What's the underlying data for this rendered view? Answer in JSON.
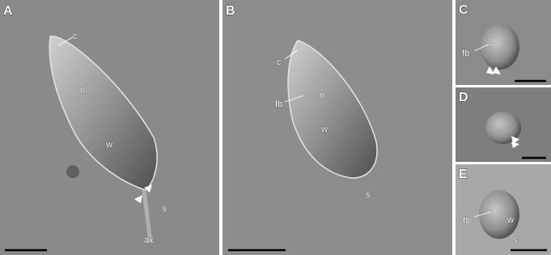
{
  "panels": [
    {
      "letter": "A",
      "labels": [
        "c",
        "n",
        "w",
        "s",
        "ax"
      ]
    },
    {
      "letter": "B",
      "labels": [
        "c",
        "fb",
        "n",
        "w",
        "s"
      ]
    },
    {
      "letter": "C",
      "labels": [
        "n",
        "fb"
      ]
    },
    {
      "letter": "D",
      "labels": [
        "n"
      ]
    },
    {
      "letter": "E",
      "labels": [
        "fb",
        "w",
        "s"
      ]
    }
  ]
}
